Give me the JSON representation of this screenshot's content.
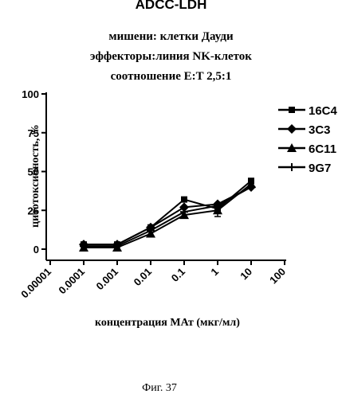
{
  "chart_data": {
    "type": "line",
    "title": "ADCC-LDH",
    "subtitle_lines": [
      "мишени: клетки Дауди",
      "эффекторы:линия NK-клеток",
      "соотношение E:T 2,5:1"
    ],
    "xlabel": "концентрация МАт (мкг/мл)",
    "ylabel": "цитотоксичность, %",
    "x_scale": "log",
    "x": [
      0.0001,
      0.001,
      0.01,
      0.1,
      1,
      10
    ],
    "x_ticks": [
      "0.00001",
      "0.0001",
      "0.001",
      "0.01",
      "0.1",
      "1",
      "10",
      "100"
    ],
    "y_ticks": [
      "0",
      "25",
      "50",
      "75",
      "100"
    ],
    "ylim": [
      0,
      100
    ],
    "legend_position": "right",
    "series": [
      {
        "name": "16C4",
        "marker": "square",
        "values": [
          3,
          3,
          14,
          32,
          26,
          44
        ]
      },
      {
        "name": "3C3",
        "marker": "diamond",
        "values": [
          3,
          3,
          14,
          27,
          29,
          40
        ]
      },
      {
        "name": "6C11",
        "marker": "triangle",
        "values": [
          1,
          1,
          10,
          22,
          25,
          42
        ]
      },
      {
        "name": "9G7",
        "marker": "cross",
        "values": [
          2,
          2,
          12,
          24,
          28,
          40
        ]
      }
    ]
  },
  "caption": "Фиг. 37"
}
